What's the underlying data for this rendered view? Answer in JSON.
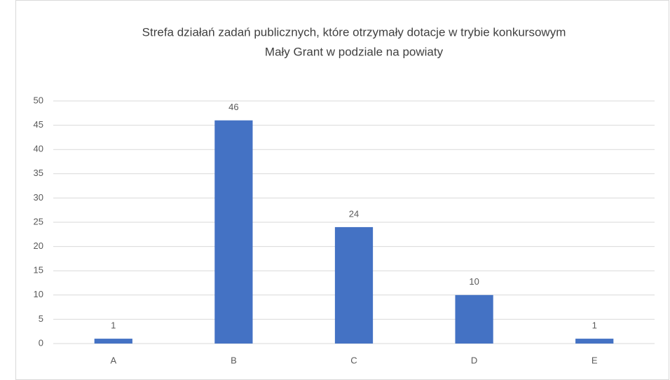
{
  "chart_data": {
    "type": "bar",
    "title": [
      "Strefa działań zadań publicznych, które otrzymały dotacje w trybie konkursowym",
      "Mały Grant w podziale na powiaty"
    ],
    "categories": [
      "A",
      "B",
      "C",
      "D",
      "E"
    ],
    "values": [
      1,
      46,
      24,
      10,
      1
    ],
    "color": "#4472c4",
    "ylim": [
      0,
      50
    ],
    "yticks": [
      0,
      5,
      10,
      15,
      20,
      25,
      30,
      35,
      40,
      45,
      50
    ],
    "grid": true,
    "data_labels": true
  }
}
